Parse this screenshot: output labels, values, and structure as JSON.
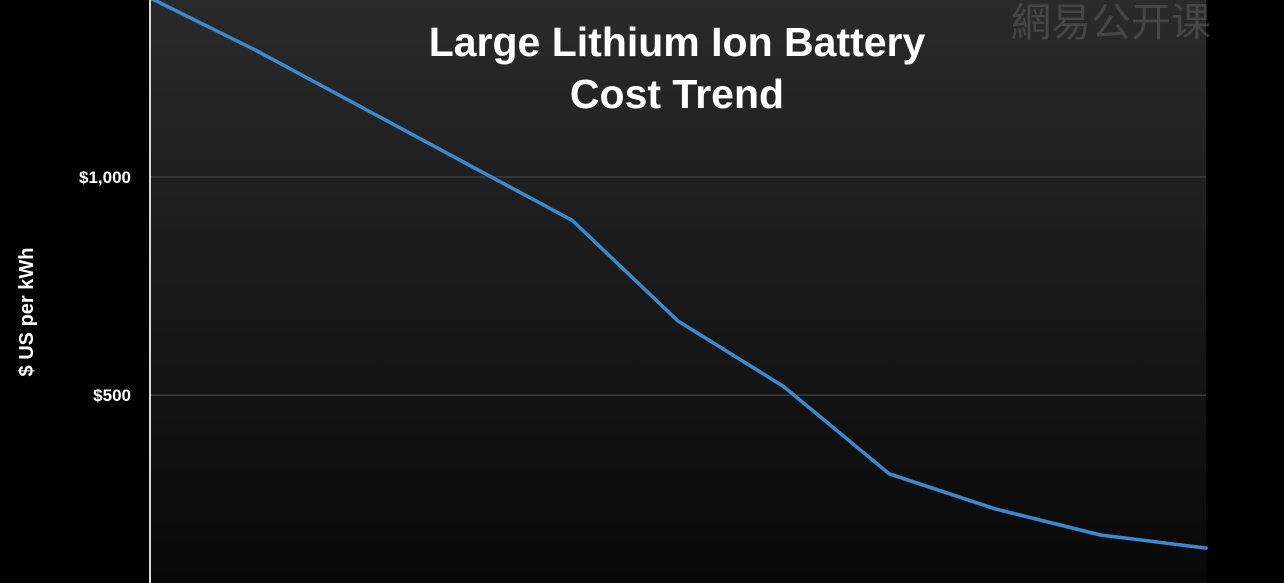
{
  "watermark": "網易公开课",
  "chart_data": {
    "type": "line",
    "title": "Large Lithium Ion Battery Cost Trend",
    "title_lines": [
      "Large Lithium Ion Battery",
      "Cost Trend"
    ],
    "xlabel": "",
    "ylabel": "$ US per kWh",
    "yticks": [
      {
        "value": 1000,
        "label": "$1,000"
      },
      {
        "value": 500,
        "label": "$500"
      }
    ],
    "ylim": [
      70,
      1405
    ],
    "grid": true,
    "x": [
      0,
      1,
      2,
      3,
      4,
      5,
      6,
      7,
      8,
      9,
      10
    ],
    "series": [
      {
        "values": [
          1410,
          1290,
          1160,
          1030,
          900,
          670,
          520,
          320,
          240,
          180,
          150
        ],
        "color": "#3a8ad0"
      }
    ],
    "colors": {
      "background": "#000000",
      "plot_top": "#2a2a2a",
      "plot_bottom": "#080808",
      "grid": "#3c3c3c",
      "axis": "#d8d8d8",
      "text": "#ffffff"
    }
  }
}
